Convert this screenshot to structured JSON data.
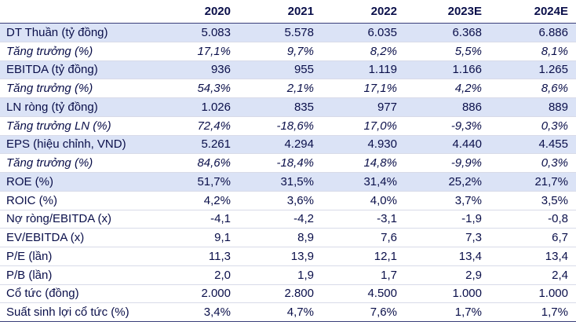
{
  "table": {
    "headers": [
      "",
      "2020",
      "2021",
      "2022",
      "2023E",
      "2024E"
    ],
    "rows": [
      {
        "label": "DT Thuần (tỷ đồng)",
        "values": [
          "5.083",
          "5.578",
          "6.035",
          "6.368",
          "6.886"
        ],
        "shaded": true,
        "italic": false
      },
      {
        "label": "Tăng trưởng (%)",
        "values": [
          "17,1%",
          "9,7%",
          "8,2%",
          "5,5%",
          "8,1%"
        ],
        "shaded": false,
        "italic": true
      },
      {
        "label": "EBITDA (tỷ đồng)",
        "values": [
          "936",
          "955",
          "1.119",
          "1.166",
          "1.265"
        ],
        "shaded": true,
        "italic": false
      },
      {
        "label": "Tăng trưởng (%)",
        "values": [
          "54,3%",
          "2,1%",
          "17,1%",
          "4,2%",
          "8,6%"
        ],
        "shaded": false,
        "italic": true
      },
      {
        "label": "LN ròng (tỷ đồng)",
        "values": [
          "1.026",
          "835",
          "977",
          "886",
          "889"
        ],
        "shaded": true,
        "italic": false
      },
      {
        "label": "Tăng trưởng LN (%)",
        "values": [
          "72,4%",
          "-18,6%",
          "17,0%",
          "-9,3%",
          "0,3%"
        ],
        "shaded": false,
        "italic": true
      },
      {
        "label": "EPS (hiệu chỉnh, VND)",
        "values": [
          "5.261",
          "4.294",
          "4.930",
          "4.440",
          "4.455"
        ],
        "shaded": true,
        "italic": false
      },
      {
        "label": "Tăng trưởng (%)",
        "values": [
          "84,6%",
          "-18,4%",
          "14,8%",
          "-9,9%",
          "0,3%"
        ],
        "shaded": false,
        "italic": true
      },
      {
        "label": "ROE (%)",
        "values": [
          "51,7%",
          "31,5%",
          "31,4%",
          "25,2%",
          "21,7%"
        ],
        "shaded": true,
        "italic": false
      },
      {
        "label": "ROIC (%)",
        "values": [
          "4,2%",
          "3,6%",
          "4,0%",
          "3,7%",
          "3,5%"
        ],
        "shaded": false,
        "italic": false
      },
      {
        "label": "Nợ ròng/EBITDA (x)",
        "values": [
          "-4,1",
          "-4,2",
          "-3,1",
          "-1,9",
          "-0,8"
        ],
        "shaded": false,
        "italic": false
      },
      {
        "label": "EV/EBITDA (x)",
        "values": [
          "9,1",
          "8,9",
          "7,6",
          "7,3",
          "6,7"
        ],
        "shaded": false,
        "italic": false
      },
      {
        "label": "P/E (lần)",
        "values": [
          "11,3",
          "13,9",
          "12,1",
          "13,4",
          "13,4"
        ],
        "shaded": false,
        "italic": false
      },
      {
        "label": "P/B (lần)",
        "values": [
          "2,0",
          "1,9",
          "1,7",
          "2,9",
          "2,4"
        ],
        "shaded": false,
        "italic": false
      },
      {
        "label": "Cổ tức (đồng)",
        "values": [
          "2.000",
          "2.800",
          "4.500",
          "1.000",
          "1.000"
        ],
        "shaded": false,
        "italic": false
      },
      {
        "label": "Suất sinh lợi cổ tức (%)",
        "values": [
          "3,4%",
          "4,7%",
          "7,6%",
          "1,7%",
          "1,7%"
        ],
        "shaded": false,
        "italic": false
      }
    ]
  }
}
